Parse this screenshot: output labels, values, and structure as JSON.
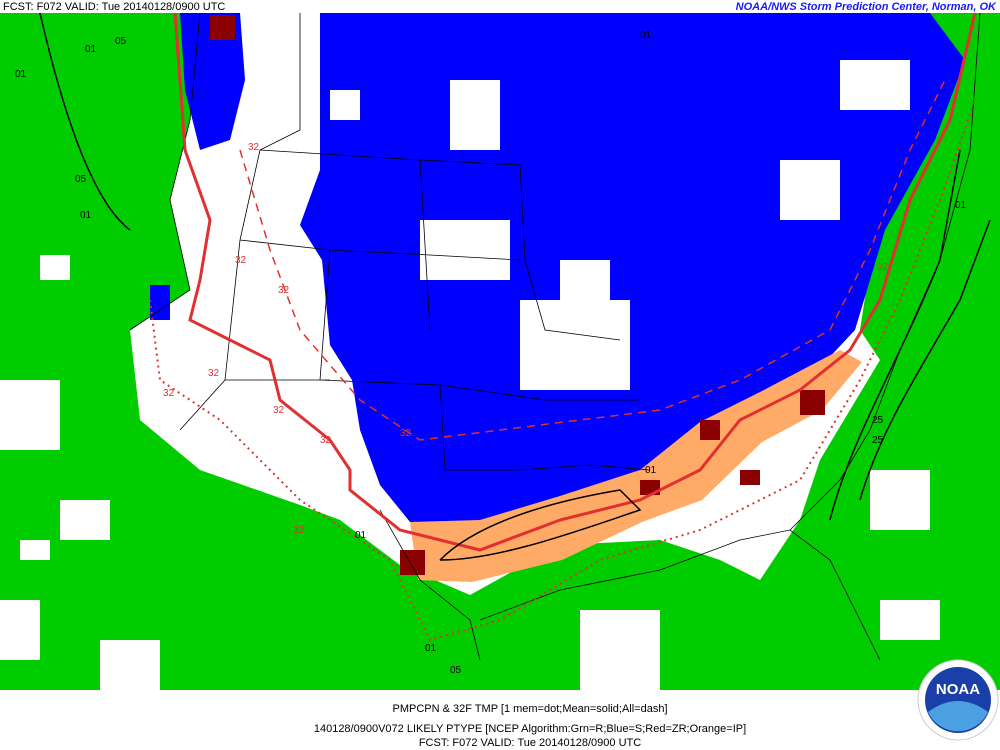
{
  "header": {
    "left": "FCST: F072  VALID: Tue  20140128/0900 UTC",
    "right": "NOAA/NWS Storm Prediction Center, Norman, OK"
  },
  "footer": {
    "line1": "PMPCPN & 32F TMP [1 mem=dot;Mean=solid;All=dash]",
    "line2": "140128/0900V072 LIKELY PTYPE [NCEP Algorithm:Grn=R;Blue=S;Red=ZR;Orange=IP]",
    "line3": "FCST: F072  VALID: Tue  20140128/0900 UTC"
  },
  "logo": "NOAA",
  "contour_labels": [
    "01",
    "05",
    "01",
    "05",
    "01",
    "32",
    "32",
    "32",
    "32",
    "32",
    "32",
    "32",
    "32",
    "32",
    "01",
    "01",
    "05",
    "01",
    "25",
    "25",
    "01",
    "32",
    "01"
  ]
}
